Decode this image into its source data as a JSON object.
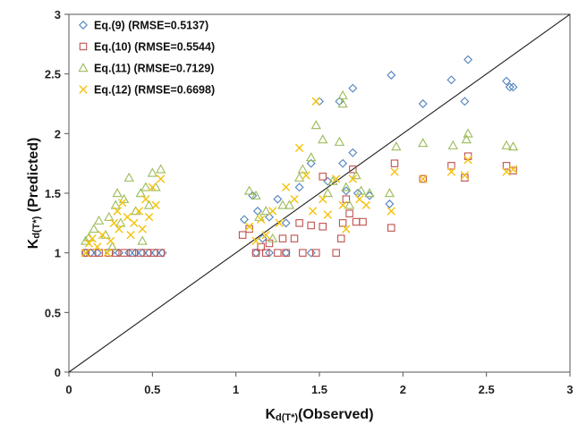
{
  "chart_data": {
    "type": "scatter",
    "xlabel": {
      "main": "K",
      "sub": "d(T*)",
      "rest": "(Observed)"
    },
    "ylabel": {
      "main": "K",
      "sub": "d(T*)",
      "rest": " (Predicted)"
    },
    "xlim": [
      0,
      3
    ],
    "ylim": [
      0,
      3
    ],
    "xticks": [
      "0",
      "0.5",
      "1",
      "1.5",
      "2",
      "2.5",
      "3"
    ],
    "yticks": [
      "0",
      "0.5",
      "1",
      "1.5",
      "2",
      "2.5",
      "3"
    ],
    "grid": false,
    "legend_position": "top-left",
    "reference_line": [
      [
        0,
        0
      ],
      [
        3,
        3
      ]
    ],
    "series": [
      {
        "name": "Eq.(9) (RMSE=0.5137)",
        "marker": "diamond",
        "color": "#4f81bd",
        "points": [
          [
            0.1,
            1.0
          ],
          [
            0.13,
            1.0
          ],
          [
            0.17,
            1.0
          ],
          [
            0.25,
            1.0
          ],
          [
            0.3,
            1.0
          ],
          [
            0.36,
            1.0
          ],
          [
            0.4,
            1.0
          ],
          [
            0.44,
            1.0
          ],
          [
            0.48,
            1.0
          ],
          [
            0.52,
            1.0
          ],
          [
            0.56,
            1.0
          ],
          [
            1.05,
            1.28
          ],
          [
            1.1,
            1.48
          ],
          [
            1.13,
            1.35
          ],
          [
            1.16,
            1.12
          ],
          [
            1.2,
            1.3
          ],
          [
            1.25,
            1.45
          ],
          [
            1.3,
            1.25
          ],
          [
            1.38,
            1.55
          ],
          [
            1.45,
            1.75
          ],
          [
            1.5,
            2.27
          ],
          [
            1.55,
            1.6
          ],
          [
            1.62,
            2.27
          ],
          [
            1.64,
            1.75
          ],
          [
            1.66,
            1.52
          ],
          [
            1.7,
            2.38
          ],
          [
            1.7,
            1.84
          ],
          [
            1.73,
            1.5
          ],
          [
            1.8,
            1.48
          ],
          [
            1.92,
            1.41
          ],
          [
            1.93,
            2.49
          ],
          [
            2.12,
            2.25
          ],
          [
            2.29,
            2.45
          ],
          [
            2.37,
            2.27
          ],
          [
            2.39,
            2.62
          ],
          [
            2.62,
            2.44
          ],
          [
            2.64,
            2.39
          ],
          [
            2.66,
            2.39
          ],
          [
            1.12,
            1.0
          ],
          [
            1.2,
            1.0
          ],
          [
            1.3,
            1.0
          ],
          [
            1.45,
            1.0
          ]
        ]
      },
      {
        "name": "Eq.(10) (RMSE=0.5544)",
        "marker": "square",
        "color": "#c0504d",
        "points": [
          [
            0.1,
            1.0
          ],
          [
            0.14,
            1.0
          ],
          [
            0.18,
            1.0
          ],
          [
            0.24,
            1.0
          ],
          [
            0.28,
            1.0
          ],
          [
            0.33,
            1.0
          ],
          [
            0.38,
            1.0
          ],
          [
            0.43,
            1.0
          ],
          [
            0.47,
            1.0
          ],
          [
            0.51,
            1.0
          ],
          [
            0.55,
            1.0
          ],
          [
            1.04,
            1.15
          ],
          [
            1.08,
            1.2
          ],
          [
            1.12,
            1.0
          ],
          [
            1.15,
            1.05
          ],
          [
            1.18,
            1.0
          ],
          [
            1.2,
            1.08
          ],
          [
            1.25,
            1.0
          ],
          [
            1.28,
            1.12
          ],
          [
            1.3,
            1.0
          ],
          [
            1.35,
            1.12
          ],
          [
            1.38,
            1.25
          ],
          [
            1.4,
            1.0
          ],
          [
            1.45,
            1.23
          ],
          [
            1.48,
            1.0
          ],
          [
            1.52,
            1.22
          ],
          [
            1.52,
            1.64
          ],
          [
            1.6,
            1.0
          ],
          [
            1.63,
            1.12
          ],
          [
            1.64,
            1.25
          ],
          [
            1.66,
            1.45
          ],
          [
            1.68,
            1.33
          ],
          [
            1.7,
            1.7
          ],
          [
            1.72,
            1.26
          ],
          [
            1.76,
            1.26
          ],
          [
            1.93,
            1.21
          ],
          [
            1.95,
            1.75
          ],
          [
            2.12,
            1.62
          ],
          [
            2.29,
            1.73
          ],
          [
            2.37,
            1.63
          ],
          [
            2.39,
            1.81
          ],
          [
            2.62,
            1.73
          ],
          [
            2.66,
            1.69
          ]
        ]
      },
      {
        "name": "Eq.(11) (RMSE=0.7129)",
        "marker": "triangle",
        "color": "#9bbb59",
        "points": [
          [
            0.1,
            1.1
          ],
          [
            0.12,
            1.13
          ],
          [
            0.15,
            1.2
          ],
          [
            0.18,
            1.27
          ],
          [
            0.22,
            1.15
          ],
          [
            0.24,
            1.3
          ],
          [
            0.26,
            1.05
          ],
          [
            0.28,
            1.4
          ],
          [
            0.29,
            1.5
          ],
          [
            0.31,
            1.25
          ],
          [
            0.33,
            1.45
          ],
          [
            0.36,
            1.63
          ],
          [
            0.4,
            1.35
          ],
          [
            0.43,
            1.5
          ],
          [
            0.44,
            1.1
          ],
          [
            0.46,
            1.55
          ],
          [
            0.48,
            1.4
          ],
          [
            0.5,
            1.67
          ],
          [
            0.52,
            1.55
          ],
          [
            0.55,
            1.7
          ],
          [
            1.08,
            1.52
          ],
          [
            1.12,
            1.48
          ],
          [
            1.14,
            1.3
          ],
          [
            1.18,
            1.35
          ],
          [
            1.22,
            1.12
          ],
          [
            1.28,
            1.4
          ],
          [
            1.32,
            1.4
          ],
          [
            1.38,
            1.63
          ],
          [
            1.4,
            1.7
          ],
          [
            1.45,
            1.8
          ],
          [
            1.48,
            2.07
          ],
          [
            1.52,
            1.95
          ],
          [
            1.55,
            1.5
          ],
          [
            1.58,
            1.6
          ],
          [
            1.62,
            1.93
          ],
          [
            1.64,
            2.25
          ],
          [
            1.66,
            1.55
          ],
          [
            1.68,
            1.4
          ],
          [
            1.72,
            1.65
          ],
          [
            1.75,
            1.52
          ],
          [
            1.8,
            1.5
          ],
          [
            1.92,
            1.5
          ],
          [
            1.96,
            1.89
          ],
          [
            2.12,
            1.92
          ],
          [
            2.3,
            1.9
          ],
          [
            2.38,
            1.95
          ],
          [
            2.39,
            2.0
          ],
          [
            2.62,
            1.9
          ],
          [
            2.66,
            1.89
          ],
          [
            1.64,
            2.32
          ]
        ]
      },
      {
        "name": "Eq.(12) (RMSE=0.6698)",
        "marker": "x",
        "color": "#f4c20d",
        "points": [
          [
            0.1,
            1.0
          ],
          [
            0.12,
            1.08
          ],
          [
            0.14,
            1.12
          ],
          [
            0.17,
            1.05
          ],
          [
            0.2,
            1.15
          ],
          [
            0.23,
            1.0
          ],
          [
            0.25,
            1.1
          ],
          [
            0.27,
            1.25
          ],
          [
            0.29,
            1.35
          ],
          [
            0.3,
            1.2
          ],
          [
            0.32,
            1.42
          ],
          [
            0.35,
            1.3
          ],
          [
            0.37,
            1.15
          ],
          [
            0.39,
            1.25
          ],
          [
            0.42,
            1.35
          ],
          [
            0.44,
            1.2
          ],
          [
            0.46,
            1.45
          ],
          [
            0.48,
            1.3
          ],
          [
            0.5,
            1.55
          ],
          [
            0.52,
            1.4
          ],
          [
            0.55,
            1.62
          ],
          [
            1.08,
            1.22
          ],
          [
            1.12,
            1.1
          ],
          [
            1.15,
            1.28
          ],
          [
            1.18,
            1.15
          ],
          [
            1.22,
            1.35
          ],
          [
            1.26,
            1.25
          ],
          [
            1.3,
            1.55
          ],
          [
            1.35,
            1.45
          ],
          [
            1.38,
            1.88
          ],
          [
            1.42,
            1.65
          ],
          [
            1.46,
            1.35
          ],
          [
            1.48,
            2.27
          ],
          [
            1.52,
            1.45
          ],
          [
            1.55,
            1.32
          ],
          [
            1.6,
            1.62
          ],
          [
            1.64,
            1.4
          ],
          [
            1.66,
            1.2
          ],
          [
            1.7,
            1.62
          ],
          [
            1.74,
            1.45
          ],
          [
            1.78,
            1.4
          ],
          [
            1.93,
            1.35
          ],
          [
            1.95,
            1.68
          ],
          [
            2.12,
            1.62
          ],
          [
            2.29,
            1.68
          ],
          [
            2.37,
            1.65
          ],
          [
            2.39,
            1.78
          ],
          [
            2.62,
            1.68
          ],
          [
            2.66,
            1.7
          ]
        ]
      }
    ]
  }
}
